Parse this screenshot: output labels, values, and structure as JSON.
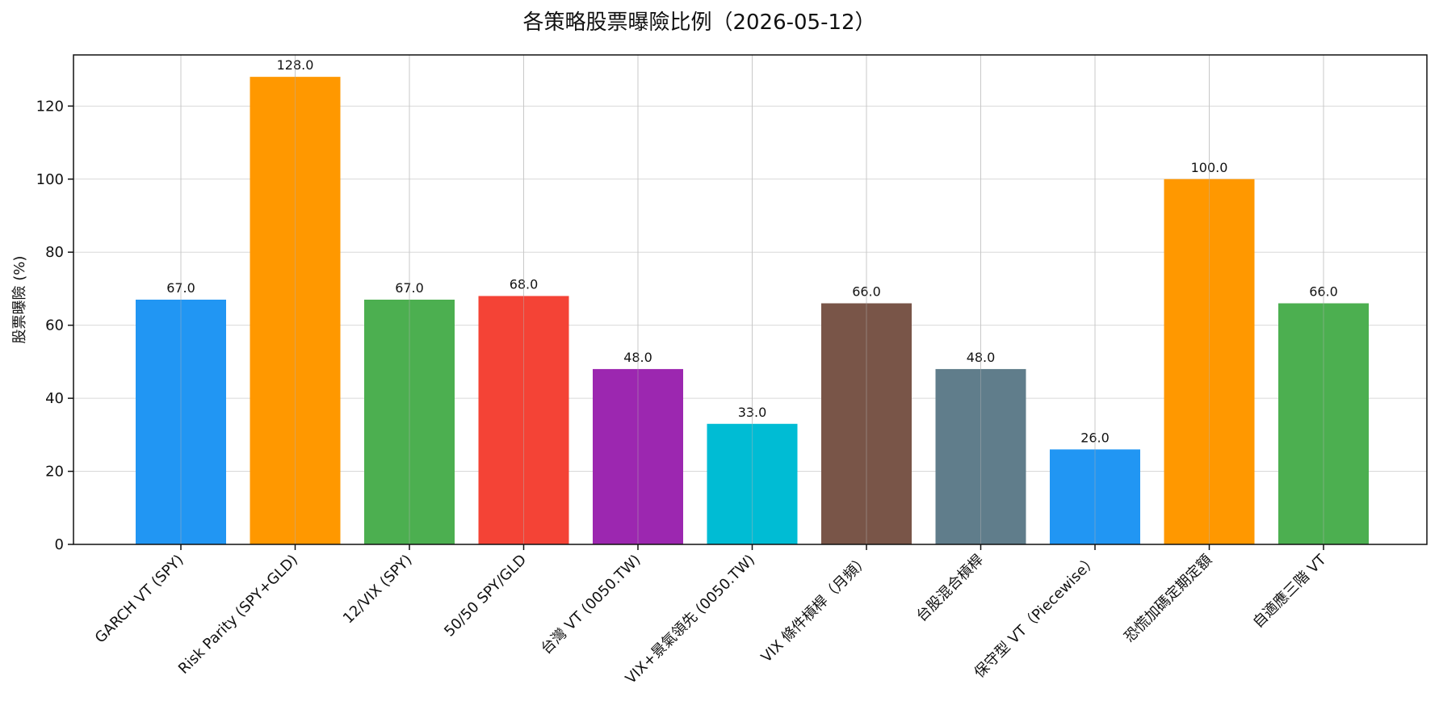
{
  "chart_data": {
    "type": "bar",
    "title": "各策略股票曝險比例（2026-05-12）",
    "xlabel": "",
    "ylabel": "股票曝險 (%)",
    "ylim": [
      0,
      134
    ],
    "yticks": [
      0,
      20,
      40,
      60,
      80,
      100,
      120
    ],
    "grid": true,
    "categories": [
      "GARCH VT (SPY)",
      "Risk Parity (SPY+GLD)",
      "12/VIX (SPY)",
      "50/50 SPY/GLD",
      "台灣 VT (0050.TW)",
      "VIX+景氣領先 (0050.TW)",
      "VIX 條件槓桿（月頻）",
      "台股混合槓桿",
      "保守型 VT（Piecewise）",
      "恐慌加碼定期定額",
      "自適應三階 VT"
    ],
    "values": [
      67.0,
      128.0,
      67.0,
      68.0,
      48.0,
      33.0,
      66.0,
      48.0,
      26.0,
      100.0,
      66.0
    ],
    "value_labels": [
      "67.0",
      "128.0",
      "67.0",
      "68.0",
      "48.0",
      "33.0",
      "66.0",
      "48.0",
      "26.0",
      "100.0",
      "66.0"
    ],
    "colors": [
      "#2196f3",
      "#ff9800",
      "#4caf50",
      "#f44336",
      "#9c27b0",
      "#00bcd4",
      "#795548",
      "#607d8b",
      "#2196f3",
      "#ff9800",
      "#4caf50"
    ]
  }
}
